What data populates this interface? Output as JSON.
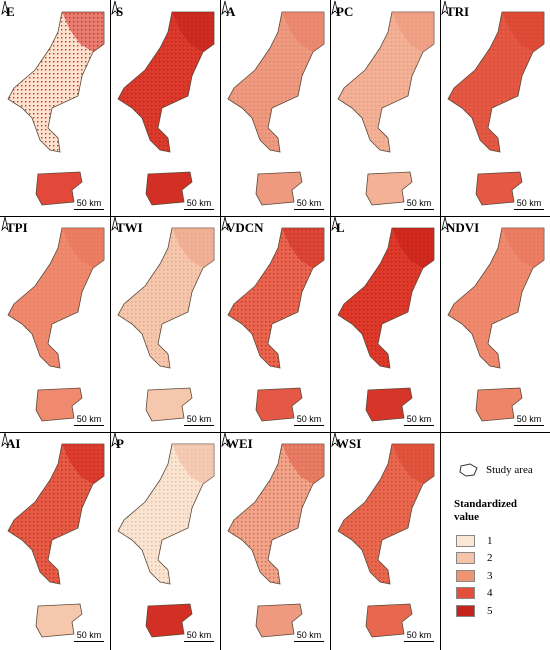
{
  "panels": [
    {
      "label": "E",
      "main": "#fbe3cf",
      "inset": "#e2493a",
      "tex": "#d52a22"
    },
    {
      "label": "S",
      "main": "#dc3a2c",
      "inset": "#d42f25",
      "tex": "#c0201a"
    },
    {
      "label": "A",
      "main": "#ee9a80",
      "inset": "#ee9a80",
      "tex": "#e77c63"
    },
    {
      "label": "PC",
      "main": "#f3b196",
      "inset": "#f3b196",
      "tex": "#ec9479"
    },
    {
      "label": "TRI",
      "main": "#e45844",
      "inset": "#e45844",
      "tex": "#d8432f"
    },
    {
      "label": "TPI",
      "main": "#ef8a6f",
      "inset": "#ef8a6f",
      "tex": "#e87457"
    },
    {
      "label": "TWI",
      "main": "#f5c7ad",
      "inset": "#f5c7ad",
      "tex": "#ed9f85"
    },
    {
      "label": "VDCN",
      "main": "#e9654f",
      "inset": "#e45845",
      "tex": "#cf2e22"
    },
    {
      "label": "L",
      "main": "#dd3a2b",
      "inset": "#d8352a",
      "tex": "#c41e16"
    },
    {
      "label": "NDVI",
      "main": "#ef8a6f",
      "inset": "#ee8569",
      "tex": "#e57357"
    },
    {
      "label": "AI",
      "main": "#e45c46",
      "inset": "#f5c7ad",
      "tex": "#d3241b"
    },
    {
      "label": "P",
      "main": "#fae5d2",
      "inset": "#d42f25",
      "tex": "#f1b79b"
    },
    {
      "label": "WEI",
      "main": "#f0a48a",
      "inset": "#ee9a80",
      "tex": "#e25d47"
    },
    {
      "label": "WSI",
      "main": "#e8684f",
      "inset": "#e8684f",
      "tex": "#d8432f"
    }
  ],
  "scale_text": "50 km",
  "legend": {
    "study_area": "Study area",
    "title_line1": "Standardized",
    "title_line2": "value",
    "items": [
      {
        "label": "1",
        "color": "#fbe7d5"
      },
      {
        "label": "2",
        "color": "#f5c4a8"
      },
      {
        "label": "3",
        "color": "#ee9674"
      },
      {
        "label": "4",
        "color": "#e2503c"
      },
      {
        "label": "5",
        "color": "#c4241b"
      }
    ]
  }
}
